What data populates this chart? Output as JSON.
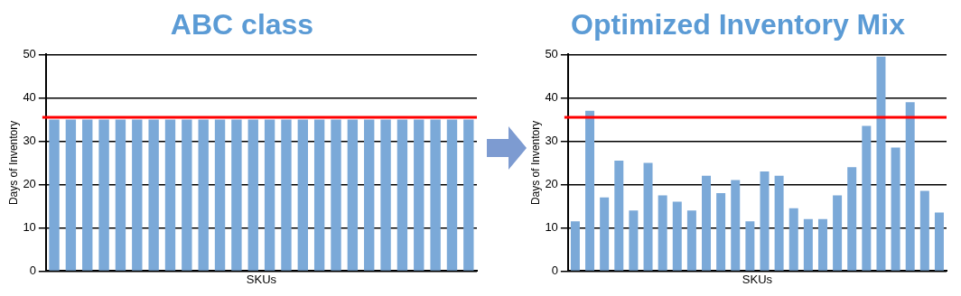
{
  "chart_data": [
    {
      "type": "bar",
      "title": "ABC class",
      "xlabel": "SKUs",
      "ylabel": "Days of Inventory",
      "categories": [
        null,
        null,
        null,
        null,
        null,
        null,
        null,
        null,
        null,
        null,
        null,
        null,
        null,
        null,
        null,
        null,
        null,
        null,
        null,
        null,
        null,
        null,
        null,
        null,
        null,
        null
      ],
      "values": [
        35,
        35,
        35,
        35,
        35,
        35,
        35,
        35,
        35,
        35,
        35,
        35,
        35,
        35,
        35,
        35,
        35,
        35,
        35,
        35,
        35,
        35,
        35,
        35,
        35,
        35
      ],
      "color": "#7ba9d8",
      "ylim": [
        0,
        50
      ],
      "yticks": [
        0,
        10,
        20,
        30,
        40,
        50
      ],
      "grid": "y",
      "ref_lines": [
        {
          "axis": "y",
          "value": 35.5,
          "color": "#ff0000"
        }
      ]
    },
    {
      "type": "bar",
      "title": "Optimized Inventory Mix",
      "xlabel": "SKUs",
      "ylabel": "Days of Inventory",
      "categories": [
        null,
        null,
        null,
        null,
        null,
        null,
        null,
        null,
        null,
        null,
        null,
        null,
        null,
        null,
        null,
        null,
        null,
        null,
        null,
        null,
        null,
        null,
        null,
        null,
        null,
        null
      ],
      "values": [
        11.5,
        37,
        17,
        25.5,
        14,
        25,
        17.5,
        16,
        14,
        22,
        18,
        21,
        11.5,
        23,
        22,
        14.5,
        12,
        12,
        17.5,
        24,
        33.5,
        49.5,
        28.5,
        39,
        18.5,
        13.5
      ],
      "color": "#7ba9d8",
      "ylim": [
        0,
        50
      ],
      "yticks": [
        0,
        10,
        20,
        30,
        40,
        50
      ],
      "grid": "y",
      "ref_lines": [
        {
          "axis": "y",
          "value": 35.5,
          "color": "#ff0000"
        }
      ]
    }
  ]
}
